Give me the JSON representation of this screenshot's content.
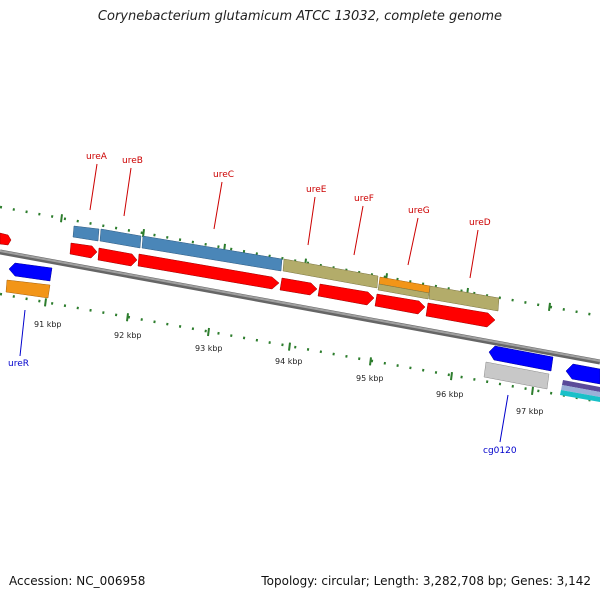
{
  "title": "Corynebacterium glutamicum ATCC 13032, complete genome",
  "footer": {
    "accession": "Accession: NC_006958",
    "summary": "Topology: circular; Length: 3,282,708 bp; Genes: 3,142"
  },
  "colors": {
    "label_forward": "#cc0000",
    "label_reverse": "#0000cc",
    "gene_red": "#ff0000",
    "gene_blue": "#0000ff",
    "steel_blue": "#4a86b8",
    "olive": "#b3ac6a",
    "orange": "#f29518",
    "gray": "#c8c8c8",
    "tick_green": "#2d7d2d",
    "backbone": "#808080"
  },
  "scale_labels": [
    "91 kbp",
    "92 kbp",
    "93 kbp",
    "94 kbp",
    "95 kbp",
    "96 kbp",
    "97 kbp"
  ],
  "gene_labels": {
    "forward": [
      "ureA",
      "ureB",
      "ureC",
      "ureE",
      "ureF",
      "ureG",
      "ureD"
    ],
    "reverse": [
      "ureR",
      "cg0120"
    ]
  }
}
